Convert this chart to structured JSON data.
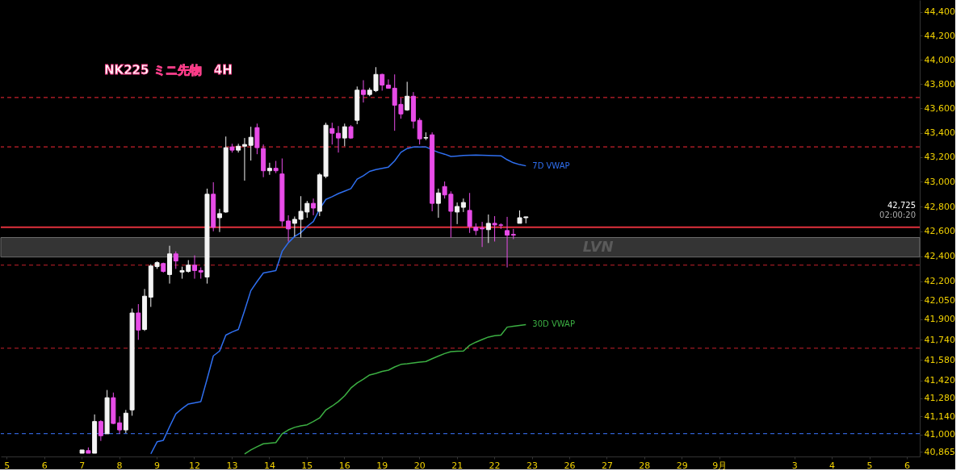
{
  "chart_data": {
    "type": "candlestick",
    "title": "NK225 ミニ先物　4H",
    "categories": [
      "5",
      null,
      null,
      null,
      null,
      null,
      "6",
      null,
      null,
      null,
      null,
      null,
      "7",
      null,
      null,
      null,
      null,
      null,
      "8",
      null,
      null,
      null,
      null,
      null,
      "9",
      null,
      null,
      null,
      null,
      null,
      "12",
      null,
      null,
      null,
      null,
      null,
      "13",
      null,
      null,
      null,
      null,
      null,
      "14",
      null,
      null,
      null,
      null,
      null,
      "15",
      null,
      null,
      null,
      null,
      null,
      "16",
      null,
      null,
      null,
      null,
      null,
      "19",
      null,
      null,
      null,
      null,
      null,
      "20",
      null,
      null,
      null,
      null,
      null,
      "21",
      null,
      null,
      null,
      null,
      null,
      "22",
      null,
      null,
      null,
      null,
      null,
      "23",
      null,
      null,
      null,
      null,
      null,
      "26",
      null,
      null,
      null,
      null,
      null,
      "27",
      null,
      null,
      null,
      null,
      null,
      "28",
      null,
      null,
      null,
      null,
      null,
      "29",
      null,
      null,
      null,
      null,
      null,
      "9月",
      null,
      null,
      null,
      null,
      null,
      null,
      null,
      null,
      null,
      null,
      null,
      "3",
      null,
      null,
      null,
      null,
      null,
      "4",
      null,
      null,
      null,
      null,
      null,
      "5",
      null,
      null,
      null,
      null,
      null,
      "6",
      null
    ],
    "ohlc": [
      null,
      null,
      null,
      null,
      null,
      null,
      null,
      null,
      null,
      null,
      null,
      null,
      [
        40855,
        40880,
        40855,
        40880
      ],
      [
        40875,
        40900,
        40855,
        40855
      ],
      [
        40855,
        41155,
        40855,
        41100
      ],
      [
        41100,
        41110,
        40950,
        40990
      ],
      [
        41005,
        41345,
        41005,
        41285
      ],
      [
        41285,
        41325,
        41080,
        41085
      ],
      [
        41090,
        41140,
        41005,
        41035
      ],
      [
        41035,
        41190,
        41010,
        41165
      ],
      [
        41190,
        41985,
        41145,
        41950
      ],
      [
        41950,
        42020,
        41738,
        41815
      ],
      [
        41820,
        42140,
        41808,
        42083
      ],
      [
        42075,
        42337,
        41998,
        42323
      ],
      [
        42318,
        42360,
        42300,
        42350
      ],
      [
        42343,
        42350,
        42270,
        42280
      ],
      [
        42255,
        42485,
        42183,
        42420
      ],
      [
        42420,
        42440,
        42300,
        42363
      ],
      [
        42275,
        42318,
        42222,
        42287
      ],
      [
        42280,
        42370,
        42270,
        42330
      ],
      [
        42330,
        42408,
        42222,
        42287
      ],
      [
        42287,
        42312,
        42222,
        42275
      ],
      [
        42235,
        42945,
        42183,
        42900
      ],
      [
        42900,
        42997,
        42601,
        42633
      ],
      [
        42710,
        42782,
        42595,
        42743
      ],
      [
        42756,
        43369,
        42750,
        43278
      ],
      [
        43284,
        43310,
        43238,
        43258
      ],
      [
        43258,
        43310,
        43238,
        43290
      ],
      [
        43290,
        43357,
        43010,
        43304
      ],
      [
        43297,
        43449,
        43173,
        43363
      ],
      [
        43442,
        43475,
        43225,
        43278
      ],
      [
        43271,
        43304,
        43038,
        43090
      ],
      [
        43090,
        43155,
        43057,
        43110
      ],
      [
        43110,
        43170,
        43071,
        43090
      ],
      [
        43064,
        43190,
        42640,
        42684
      ],
      [
        42684,
        42730,
        42519,
        42620
      ],
      [
        42665,
        42720,
        42560,
        42697
      ],
      [
        42697,
        42884,
        42551,
        42762
      ],
      [
        42756,
        42846,
        42710,
        42826
      ],
      [
        42826,
        42865,
        42730,
        42788
      ],
      [
        42762,
        43071,
        42723,
        43057
      ],
      [
        43045,
        43482,
        43030,
        43462
      ],
      [
        43435,
        43482,
        43304,
        43396
      ],
      [
        43396,
        43455,
        43238,
        43357
      ],
      [
        43357,
        43475,
        43290,
        43449
      ],
      [
        43449,
        43462,
        43350,
        43357
      ],
      [
        43502,
        43780,
        43470,
        43750
      ],
      [
        43750,
        43832,
        43648,
        43714
      ],
      [
        43714,
        43770,
        43700,
        43750
      ],
      [
        43746,
        43940,
        43734,
        43880
      ],
      [
        43880,
        43886,
        43746,
        43792
      ],
      [
        43792,
        43839,
        43766,
        43766
      ],
      [
        43766,
        43880,
        43416,
        43626
      ],
      [
        43633,
        43686,
        43515,
        43554
      ],
      [
        43587,
        43819,
        43580,
        43700
      ],
      [
        43700,
        43734,
        43435,
        43495
      ],
      [
        43502,
        43521,
        43304,
        43350
      ],
      [
        43357,
        43403,
        43340,
        43360
      ],
      [
        43383,
        43403,
        42762,
        42826
      ],
      [
        42826,
        42945,
        42710,
        42910
      ],
      [
        42962,
        43003,
        42865,
        42894
      ],
      [
        42900,
        42923,
        42551,
        42762
      ],
      [
        42756,
        42833,
        42659,
        42801
      ],
      [
        42794,
        42865,
        42756,
        42833
      ],
      [
        42769,
        42910,
        42588,
        42640
      ],
      [
        42633,
        42665,
        42570,
        42607
      ],
      [
        42627,
        42677,
        42475,
        42620
      ],
      [
        42614,
        42736,
        42507,
        42665
      ],
      [
        42665,
        42723,
        42519,
        42652
      ],
      [
        42652,
        42665,
        42620,
        42650
      ],
      [
        42607,
        42717,
        42312,
        42570
      ],
      [
        42576,
        42620,
        42538,
        42570
      ],
      [
        42665,
        42769,
        42665,
        42710
      ],
      [
        42710,
        42717,
        42665,
        42717
      ],
      null,
      null,
      null,
      null,
      null,
      null,
      null,
      null,
      null,
      null,
      null,
      null,
      null,
      null,
      null,
      null,
      null,
      null,
      null,
      null,
      null,
      null,
      null,
      null,
      null,
      null,
      null,
      null,
      null,
      null,
      null,
      null,
      null,
      null,
      null,
      null,
      null,
      null,
      null,
      null,
      null,
      null,
      null,
      null,
      null,
      null,
      null,
      null,
      null,
      null,
      null,
      null,
      null,
      null,
      null,
      null,
      null,
      null,
      null,
      null,
      null,
      null
    ],
    "colors": [
      null,
      null,
      null,
      null,
      null,
      null,
      null,
      null,
      null,
      null,
      null,
      null,
      "#f4f4f4",
      "#e84ce8",
      "#f4f4f4",
      "#e84ce8",
      "#f4f4f4",
      "#e84ce8",
      "#e84ce8",
      "#f4f4f4",
      "#f4f4f4",
      "#e84ce8",
      "#f4f4f4",
      "#f4f4f4",
      "#f4f4f4",
      "#e84ce8",
      "#f4f4f4",
      "#e84ce8",
      "#f4f4f4",
      "#f4f4f4",
      "#e84ce8",
      "#e84ce8",
      "#f4f4f4",
      "#e84ce8",
      "#f4f4f4",
      "#f4f4f4",
      "#e84ce8",
      "#f4f4f4",
      "#f4f4f4",
      "#f4f4f4",
      "#e84ce8",
      "#e84ce8",
      "#f4f4f4",
      "#e84ce8",
      "#e84ce8",
      "#e84ce8",
      "#f4f4f4",
      "#f4f4f4",
      "#f4f4f4",
      "#e84ce8",
      "#f4f4f4",
      "#f4f4f4",
      "#e84ce8",
      "#e84ce8",
      "#f4f4f4",
      "#e84ce8",
      "#f4f4f4",
      "#e84ce8",
      "#f4f4f4",
      "#f4f4f4",
      "#e84ce8",
      "#e84ce8",
      "#e84ce8",
      "#e84ce8",
      "#f4f4f4",
      "#e84ce8",
      "#e84ce8",
      "#f4f4f4",
      "#e84ce8",
      "#f4f4f4",
      "#e84ce8",
      "#e84ce8",
      "#f4f4f4",
      "#f4f4f4",
      "#e84ce8",
      "#e84ce8",
      "#e84ce8",
      "#f4f4f4",
      "#e84ce8",
      "#e84ce8",
      "#e84ce8",
      "#e84ce8",
      "#f4f4f4",
      "#f4f4f4",
      null,
      null,
      null,
      null,
      null,
      null,
      null,
      null,
      null,
      null,
      null,
      null,
      null,
      null,
      null,
      null,
      null,
      null,
      null,
      null,
      null,
      null,
      null,
      null,
      null,
      null,
      null,
      null,
      null,
      null,
      null,
      null,
      null,
      null,
      null,
      null,
      null,
      null,
      null,
      null,
      null,
      null,
      null,
      null,
      null,
      null,
      null,
      null,
      null,
      null,
      null,
      null,
      null,
      null,
      null,
      null,
      null,
      null,
      null,
      null,
      null,
      null
    ],
    "series": [
      {
        "name": "7D VWAP",
        "type": "line",
        "color": "#2f6ff0",
        "values": [
          null,
          null,
          null,
          null,
          null,
          null,
          null,
          null,
          null,
          null,
          null,
          null,
          null,
          null,
          null,
          null,
          null,
          null,
          null,
          null,
          null,
          null,
          null,
          40850,
          40943,
          40955,
          41060,
          41160,
          41200,
          41236,
          41245,
          41255,
          41430,
          41612,
          41650,
          41775,
          41800,
          41820,
          41970,
          42127,
          42200,
          42267,
          42277,
          42287,
          42440,
          42510,
          42560,
          42590,
          42640,
          42680,
          42780,
          42858,
          42880,
          42905,
          42925,
          42945,
          43022,
          43050,
          43085,
          43100,
          43110,
          43120,
          43170,
          43240,
          43271,
          43284,
          43284,
          43284,
          43260,
          43240,
          43225,
          43206,
          43210,
          43214,
          43216,
          43218,
          43216,
          43214,
          43213,
          43212,
          43180,
          43155,
          43140,
          43130,
          null,
          null,
          null,
          null,
          null,
          null,
          null,
          null,
          null,
          null,
          null,
          null,
          null,
          null,
          null,
          null,
          null,
          null,
          null,
          null,
          null,
          null,
          null,
          null,
          null,
          null,
          null,
          null,
          null,
          null,
          null,
          null,
          null,
          null,
          null,
          null,
          null,
          null,
          null,
          null,
          null,
          null,
          null,
          null,
          null,
          null,
          null,
          null,
          null,
          null,
          null,
          null,
          null,
          null,
          null,
          null,
          null,
          null,
          null,
          null,
          null,
          null
        ]
      },
      {
        "name": "30D VWAP",
        "type": "line",
        "color": "#3cb043",
        "values": [
          null,
          null,
          null,
          null,
          null,
          null,
          null,
          null,
          null,
          null,
          null,
          null,
          null,
          null,
          null,
          null,
          null,
          null,
          null,
          null,
          null,
          null,
          null,
          null,
          null,
          null,
          null,
          null,
          null,
          null,
          null,
          null,
          null,
          null,
          null,
          null,
          null,
          null,
          40850,
          40880,
          40905,
          40928,
          40933,
          40937,
          41005,
          41035,
          41055,
          41067,
          41075,
          41100,
          41128,
          41190,
          41220,
          41255,
          41300,
          41360,
          41400,
          41430,
          41462,
          41475,
          41490,
          41500,
          41525,
          41545,
          41550,
          41557,
          41563,
          41568,
          41590,
          41610,
          41630,
          41645,
          41648,
          41650,
          41695,
          41720,
          41740,
          41760,
          41770,
          41775,
          41838,
          41845,
          41852,
          41858,
          null,
          null,
          null,
          null,
          null,
          null,
          null,
          null,
          null,
          null,
          null,
          null,
          null,
          null,
          null,
          null,
          null,
          null,
          null,
          null,
          null,
          null,
          null,
          null,
          null,
          null,
          null,
          null,
          null,
          null,
          null,
          null,
          null,
          null,
          null,
          null,
          null,
          null,
          null,
          null,
          null,
          null,
          null,
          null,
          null,
          null,
          null,
          null,
          null,
          null,
          null,
          null,
          null,
          null,
          null,
          null,
          null,
          null,
          null,
          null,
          null,
          null
        ]
      }
    ],
    "ref_lines": [
      {
        "axis": "y",
        "value": 42633,
        "color": "#e0303c",
        "line_style": "solid"
      },
      {
        "axis": "y",
        "value": 43690,
        "color": "#c8202c",
        "line_style": "dashed"
      },
      {
        "axis": "y",
        "value": 43284,
        "color": "#c8202c",
        "line_style": "dashed"
      },
      {
        "axis": "y",
        "value": 42330,
        "color": "#c8202c",
        "line_style": "dashed"
      },
      {
        "axis": "y",
        "value": 41672,
        "color": "#c8202c",
        "line_style": "dashed"
      },
      {
        "axis": "y",
        "value": 41007,
        "color": "#2f5fd0",
        "line_style": "dashed"
      }
    ],
    "bands": [
      {
        "axis": "y",
        "from": 42395,
        "to": 42551,
        "label": "LVN",
        "color": "#3a3a3a"
      }
    ],
    "annotations": [
      "42,725",
      "02:00:20"
    ],
    "ylim": [
      40830,
      44500
    ],
    "log": "y",
    "yticks": [
      {
        "value": 40865,
        "label": "40,865"
      },
      {
        "value": 41000,
        "label": "41,000"
      },
      {
        "value": 41140,
        "label": "41,140"
      },
      {
        "value": 41280,
        "label": "41,280"
      },
      {
        "value": 41420,
        "label": "41,420"
      },
      {
        "value": 41580,
        "label": "41,580"
      },
      {
        "value": 41740,
        "label": "41,740"
      },
      {
        "value": 41900,
        "label": "41,900"
      },
      {
        "value": 42050,
        "label": "42,050"
      },
      {
        "value": 42200,
        "label": "42,200"
      },
      {
        "value": 42400,
        "label": "42,400"
      },
      {
        "value": 42600,
        "label": "42,600"
      },
      {
        "value": 42800,
        "label": "42,800"
      },
      {
        "value": 43000,
        "label": "43,000"
      },
      {
        "value": 43200,
        "label": "43,200"
      },
      {
        "value": 43400,
        "label": "43,400"
      },
      {
        "value": 43600,
        "label": "43,600"
      },
      {
        "value": 43800,
        "label": "43,800"
      },
      {
        "value": 44000,
        "label": "44,000"
      },
      {
        "value": 44200,
        "label": "44,200"
      },
      {
        "value": 44400,
        "label": "44,400"
      }
    ],
    "grid": false
  }
}
